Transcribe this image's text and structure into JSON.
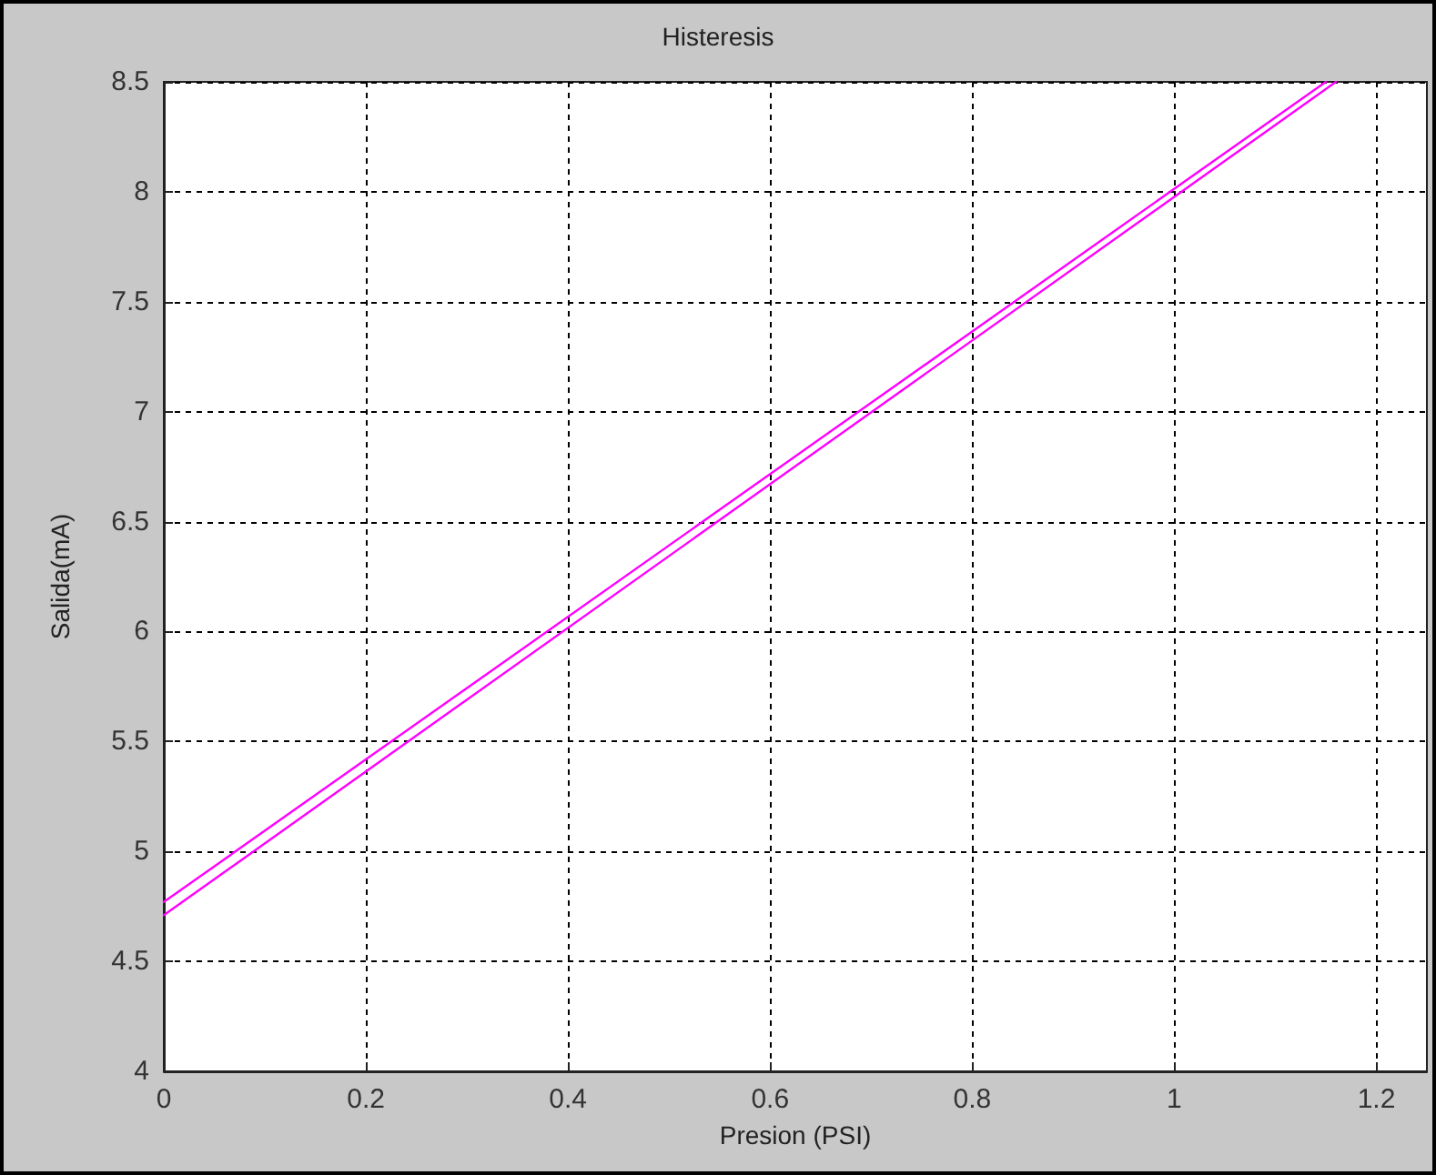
{
  "chart_data": {
    "type": "line",
    "title": "Histeresis",
    "xlabel": "Presion (PSI)",
    "ylabel": "Salida(mA)",
    "series": [
      {
        "color": "#ff00ff",
        "x": [
          0,
          1.15
        ],
        "values": [
          4.77,
          8.5
        ]
      },
      {
        "color": "#ff00ff",
        "x": [
          0,
          1.16
        ],
        "values": [
          4.71,
          8.5
        ]
      }
    ],
    "xlim": [
      0,
      1.25
    ],
    "xticks": [
      0,
      0.2,
      0.4,
      0.6,
      0.8,
      1,
      1.2
    ],
    "ylim": [
      4,
      8.5
    ],
    "yticks": [
      4,
      4.5,
      5,
      5.5,
      6,
      6.5,
      7,
      7.5,
      8,
      8.5
    ],
    "grid": true,
    "marker": "none",
    "line_style": "solid"
  }
}
